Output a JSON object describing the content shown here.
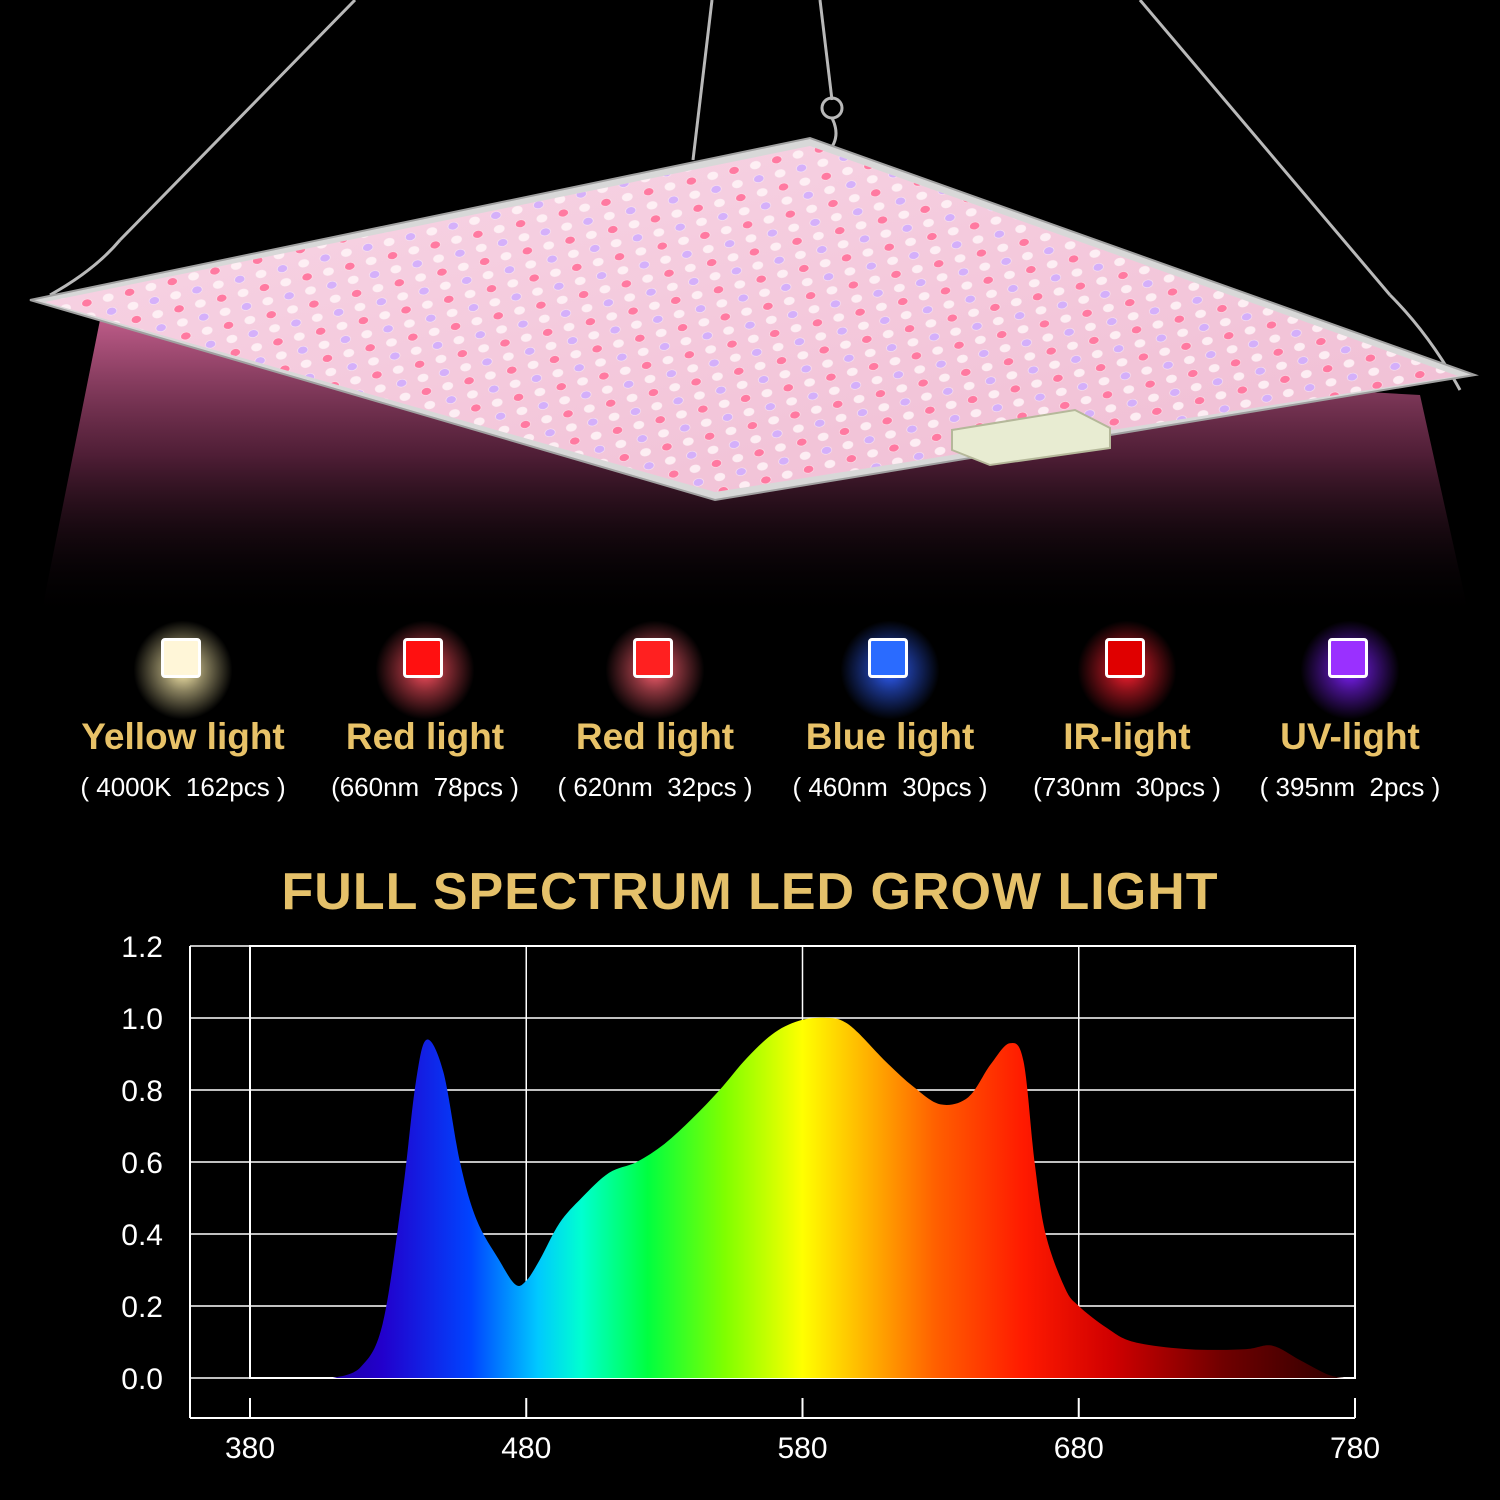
{
  "led_types": [
    {
      "name": "Yellow light",
      "spec": "( 4000K  162pcs )",
      "color": "#fff6d8",
      "glow": "#fff0b0"
    },
    {
      "name": "Red light",
      "spec": "(660nm  78pcs )",
      "color": "#ff1010",
      "glow": "#ff5060"
    },
    {
      "name": "Red light",
      "spec": "( 620nm  32pcs )",
      "color": "#ff2020",
      "glow": "#ff6070"
    },
    {
      "name": "Blue light",
      "spec": "( 460nm  30pcs )",
      "color": "#2a6bff",
      "glow": "#3060ff"
    },
    {
      "name": "IR-light",
      "spec": "(730nm  30pcs )",
      "color": "#e00000",
      "glow": "#ff2030"
    },
    {
      "name": "UV-light",
      "spec": "( 395nm  2pcs )",
      "color": "#9a30ff",
      "glow": "#8020ff"
    }
  ],
  "chart_title": "FULL SPECTRUM LED GROW LIGHT",
  "chart_data": {
    "type": "area",
    "title": "FULL SPECTRUM LED GROW LIGHT",
    "xlabel": "",
    "ylabel": "",
    "xlim": [
      380,
      780
    ],
    "ylim": [
      0,
      1.2
    ],
    "x_ticks": [
      380,
      480,
      580,
      680,
      780
    ],
    "y_ticks": [
      0.0,
      0.2,
      0.4,
      0.6,
      0.8,
      1.0,
      1.2
    ],
    "x_tick_labels": [
      "380",
      "480",
      "580",
      "680",
      "780"
    ],
    "y_tick_labels": [
      "0.0",
      "0.2",
      "0.4",
      "0.6",
      "0.8",
      "1.0",
      "1.2"
    ],
    "grid": true,
    "series": [
      {
        "x": [
          410,
          420,
          428,
          435,
          440,
          444,
          450,
          456,
          462,
          470,
          476,
          480,
          485,
          492,
          500,
          510,
          520,
          530,
          540,
          550,
          560,
          570,
          580,
          590,
          595,
          600,
          610,
          620,
          630,
          640,
          648,
          655,
          660,
          664,
          668,
          675,
          680,
          690,
          700,
          720,
          740,
          750,
          760,
          770,
          776
        ],
        "y": [
          0.0,
          0.03,
          0.15,
          0.5,
          0.82,
          0.94,
          0.85,
          0.6,
          0.44,
          0.33,
          0.26,
          0.27,
          0.33,
          0.43,
          0.5,
          0.57,
          0.6,
          0.65,
          0.72,
          0.8,
          0.89,
          0.96,
          0.995,
          1.0,
          0.99,
          0.96,
          0.88,
          0.81,
          0.76,
          0.78,
          0.87,
          0.93,
          0.88,
          0.6,
          0.4,
          0.25,
          0.2,
          0.14,
          0.1,
          0.08,
          0.08,
          0.09,
          0.05,
          0.01,
          0.0
        ]
      }
    ]
  }
}
